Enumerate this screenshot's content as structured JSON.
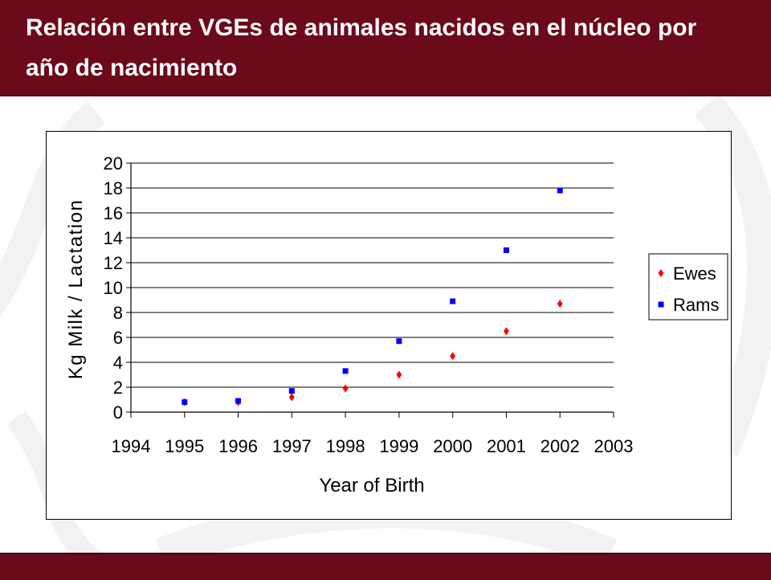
{
  "slide": {
    "title": "Relación entre VGEs de animales nacidos en el núcleo por año de nacimiento",
    "accent_color": "#6b0a1a"
  },
  "chart_data": {
    "type": "scatter",
    "title": "",
    "xlabel": "Year of Birth",
    "ylabel": "Kg Milk / Lactation",
    "xlim": [
      1994,
      2003
    ],
    "ylim": [
      0,
      20
    ],
    "x_ticks": [
      1994,
      1995,
      1996,
      1997,
      1998,
      1999,
      2000,
      2001,
      2002,
      2003
    ],
    "y_ticks": [
      0,
      2,
      4,
      6,
      8,
      10,
      12,
      14,
      16,
      18,
      20
    ],
    "grid": "horizontal",
    "legend_position": "right",
    "series": [
      {
        "name": "Ewes",
        "color": "#ff0000",
        "marker": "diamond",
        "x": [
          1995,
          1996,
          1997,
          1998,
          1999,
          2000,
          2001,
          2002
        ],
        "y": [
          0.8,
          0.8,
          1.2,
          1.9,
          3.0,
          4.5,
          6.5,
          8.7
        ]
      },
      {
        "name": "Rams",
        "color": "#0000ff",
        "marker": "square",
        "x": [
          1995,
          1996,
          1997,
          1998,
          1999,
          2000,
          2001,
          2002
        ],
        "y": [
          0.8,
          0.9,
          1.7,
          3.3,
          5.7,
          8.9,
          13.0,
          17.8
        ]
      }
    ]
  }
}
